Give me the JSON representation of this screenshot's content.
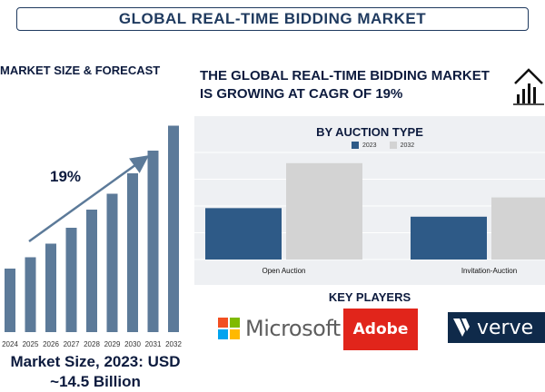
{
  "header": {
    "title": "GLOBAL REAL-TIME BIDDING MARKET"
  },
  "left": {
    "heading": "MARKET SIZE & FORECAST",
    "cagr_label": "19%",
    "market_size_line1": "Market Size, 2023: USD",
    "market_size_line2": "~14.5 Billion"
  },
  "right": {
    "headline_line1": "THE GLOBAL REAL-TIME BIDDING MARKET",
    "headline_line2": "IS GROWING AT CAGR OF 19%"
  },
  "key_players": {
    "title": "KEY PLAYERS",
    "microsoft": "Microsoft",
    "adobe": "Adobe",
    "verve": "verve"
  },
  "colors": {
    "bar_blue": "#5c7a99",
    "navy": "#0d1b3e",
    "series_2023": "#2e5a87",
    "series_2032": "#d3d3d3"
  },
  "icons": [
    "house-chart-icon",
    "trend-arrow-icon",
    "microsoft-logo-icon",
    "verve-v-icon"
  ],
  "chart_data": [
    {
      "type": "bar",
      "title": "MARKET SIZE & FORECAST",
      "categories": [
        "2024",
        "2025",
        "2026",
        "2027",
        "2028",
        "2029",
        "2030",
        "2031",
        "2032"
      ],
      "values": [
        28,
        33,
        39,
        46,
        54,
        61,
        70,
        80,
        91
      ],
      "ylim": [
        0,
        100
      ],
      "annotations": [
        "19%"
      ],
      "grid": false
    },
    {
      "type": "bar",
      "title": "BY AUCTION TYPE",
      "categories": [
        "Open Auction",
        "Invitation-Auction"
      ],
      "series": [
        {
          "name": "2023",
          "values": [
            48,
            40
          ]
        },
        {
          "name": "2032",
          "values": [
            90,
            58
          ]
        }
      ],
      "ylim": [
        0,
        100
      ],
      "grid": true,
      "legend": "top-center"
    }
  ]
}
